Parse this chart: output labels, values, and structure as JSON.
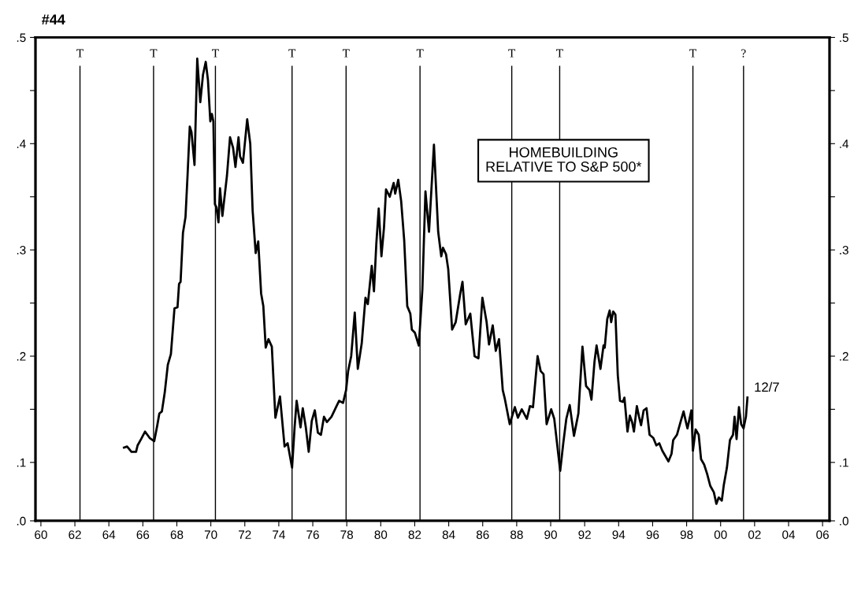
{
  "chart_data": {
    "type": "line",
    "title": "#44",
    "annotations": [
      "HOMEBUILDING\nRELATIVE TO S&P 500*",
      {
        "text": "12/7",
        "x": 2001.58,
        "y": 0.161
      }
    ],
    "xlim": [
      1959.68,
      2006.41
    ],
    "xticks": [
      {
        "value": 1960,
        "label": "60"
      },
      {
        "value": 1962,
        "label": "62"
      },
      {
        "value": 1964,
        "label": "64"
      },
      {
        "value": 1966,
        "label": "66"
      },
      {
        "value": 1968,
        "label": "68"
      },
      {
        "value": 1970,
        "label": "70"
      },
      {
        "value": 1972,
        "label": "72"
      },
      {
        "value": 1974,
        "label": "74"
      },
      {
        "value": 1976,
        "label": "76"
      },
      {
        "value": 1978,
        "label": "78"
      },
      {
        "value": 1980,
        "label": "80"
      },
      {
        "value": 1982,
        "label": "82"
      },
      {
        "value": 1984,
        "label": "84"
      },
      {
        "value": 1986,
        "label": "86"
      },
      {
        "value": 1988,
        "label": "88"
      },
      {
        "value": 1990,
        "label": "90"
      },
      {
        "value": 1992,
        "label": "92"
      },
      {
        "value": 1994,
        "label": "94"
      },
      {
        "value": 1996,
        "label": "96"
      },
      {
        "value": 1998,
        "label": "98"
      },
      {
        "value": 2000,
        "label": "00"
      },
      {
        "value": 2002,
        "label": "02"
      },
      {
        "value": 2004,
        "label": "04"
      },
      {
        "value": 2006,
        "label": "06"
      }
    ],
    "ylim": [
      0.045,
      0.5
    ],
    "yticks": [
      {
        "value": 0.045,
        "label": ".0"
      },
      {
        "value": 0.1,
        "label": ".1"
      },
      {
        "value": 0.15,
        "label": null
      },
      {
        "value": 0.2,
        "label": ".2"
      },
      {
        "value": 0.25,
        "label": null
      },
      {
        "value": 0.3,
        "label": ".3"
      },
      {
        "value": 0.35,
        "label": null
      },
      {
        "value": 0.4,
        "label": ".4"
      },
      {
        "value": 0.45,
        "label": null
      },
      {
        "value": 0.5,
        "label": ".5"
      }
    ],
    "y2lim": [
      0.045,
      0.5
    ],
    "y2ticks": [
      {
        "value": 0.045,
        "label": ".0"
      },
      {
        "value": 0.1,
        "label": ".1"
      },
      {
        "value": 0.15,
        "label": null
      },
      {
        "value": 0.2,
        "label": ".2"
      },
      {
        "value": 0.25,
        "label": null
      },
      {
        "value": 0.3,
        "label": ".3"
      },
      {
        "value": 0.35,
        "label": null
      },
      {
        "value": 0.4,
        "label": ".4"
      },
      {
        "value": 0.45,
        "label": null
      },
      {
        "value": 0.5,
        "label": ".5"
      }
    ],
    "grid": false,
    "legend": false,
    "ref_lines": [
      {
        "axis": "x",
        "value": 1962.3,
        "label": "T"
      },
      {
        "axis": "x",
        "value": 1966.63,
        "label": "T"
      },
      {
        "axis": "x",
        "value": 1970.27,
        "label": "T"
      },
      {
        "axis": "x",
        "value": 1974.78,
        "label": "T"
      },
      {
        "axis": "x",
        "value": 1977.96,
        "label": "T"
      },
      {
        "axis": "x",
        "value": 1982.31,
        "label": "T"
      },
      {
        "axis": "x",
        "value": 1987.71,
        "label": "T"
      },
      {
        "axis": "x",
        "value": 1990.53,
        "label": "T"
      },
      {
        "axis": "x",
        "value": 1998.37,
        "label": "T"
      },
      {
        "axis": "x",
        "value": 2001.35,
        "label": "?"
      }
    ],
    "series": [
      {
        "color": "#000000",
        "x": [
          1964.89,
          1965.07,
          1965.33,
          1965.6,
          1965.69,
          1965.9,
          1966.13,
          1966.4,
          1966.67,
          1966.85,
          1966.97,
          1967.12,
          1967.29,
          1967.47,
          1967.65,
          1967.86,
          1968.04,
          1968.13,
          1968.22,
          1968.36,
          1968.51,
          1968.63,
          1968.76,
          1968.86,
          1969.04,
          1969.2,
          1969.38,
          1969.54,
          1969.7,
          1969.83,
          1969.97,
          1970.06,
          1970.15,
          1970.24,
          1970.33,
          1970.45,
          1970.54,
          1970.68,
          1970.95,
          1971.13,
          1971.31,
          1971.45,
          1971.63,
          1971.72,
          1971.89,
          1972.14,
          1972.32,
          1972.46,
          1972.64,
          1972.79,
          1972.96,
          1973.09,
          1973.23,
          1973.39,
          1973.59,
          1973.8,
          1974.07,
          1974.34,
          1974.52,
          1974.78,
          1974.93,
          1975.05,
          1975.28,
          1975.41,
          1975.59,
          1975.76,
          1975.94,
          1976.12,
          1976.3,
          1976.48,
          1976.66,
          1976.83,
          1977.1,
          1977.37,
          1977.55,
          1977.78,
          1977.96,
          1978.08,
          1978.26,
          1978.47,
          1978.65,
          1978.88,
          1979.1,
          1979.24,
          1979.47,
          1979.6,
          1979.74,
          1979.88,
          1980.04,
          1980.19,
          1980.31,
          1980.53,
          1980.76,
          1980.85,
          1981.03,
          1981.2,
          1981.38,
          1981.56,
          1981.74,
          1981.83,
          1982.01,
          1982.24,
          1982.45,
          1982.63,
          1982.84,
          1983.13,
          1983.38,
          1983.56,
          1983.66,
          1983.84,
          1983.97,
          1984.2,
          1984.41,
          1984.68,
          1984.81,
          1985.0,
          1985.27,
          1985.52,
          1985.75,
          1985.98,
          1986.23,
          1986.37,
          1986.59,
          1986.77,
          1986.96,
          1987.18,
          1987.3,
          1987.59,
          1987.89,
          1988.07,
          1988.3,
          1988.6,
          1988.78,
          1988.96,
          1989.23,
          1989.41,
          1989.58,
          1989.76,
          1990.03,
          1990.21,
          1990.56,
          1990.74,
          1990.92,
          1991.12,
          1991.37,
          1991.63,
          1991.87,
          1992.08,
          1992.29,
          1992.4,
          1992.58,
          1992.7,
          1992.93,
          1993.11,
          1993.18,
          1993.33,
          1993.47,
          1993.56,
          1993.68,
          1993.81,
          1993.95,
          1994.08,
          1994.25,
          1994.34,
          1994.52,
          1994.66,
          1994.79,
          1994.9,
          1995.07,
          1995.2,
          1995.32,
          1995.47,
          1995.64,
          1995.82,
          1996.04,
          1996.22,
          1996.39,
          1996.57,
          1996.93,
          1997.11,
          1997.21,
          1997.43,
          1997.64,
          1997.82,
          1997.96,
          1998.05,
          1998.28,
          1998.37,
          1998.53,
          1998.71,
          1998.85,
          1999.03,
          1999.21,
          1999.39,
          1999.6,
          1999.75,
          1999.89,
          2000.07,
          2000.19,
          2000.37,
          2000.55,
          2000.73,
          2000.82,
          2000.94,
          2001.08,
          2001.21,
          2001.35,
          2001.49,
          2001.58
        ],
        "values": [
          0.114,
          0.115,
          0.11,
          0.11,
          0.116,
          0.122,
          0.129,
          0.123,
          0.12,
          0.135,
          0.146,
          0.148,
          0.166,
          0.192,
          0.202,
          0.245,
          0.246,
          0.268,
          0.27,
          0.316,
          0.331,
          0.37,
          0.416,
          0.411,
          0.38,
          0.48,
          0.439,
          0.465,
          0.477,
          0.46,
          0.421,
          0.428,
          0.421,
          0.343,
          0.34,
          0.326,
          0.358,
          0.332,
          0.37,
          0.406,
          0.396,
          0.378,
          0.406,
          0.388,
          0.382,
          0.423,
          0.4,
          0.337,
          0.297,
          0.308,
          0.259,
          0.247,
          0.208,
          0.216,
          0.209,
          0.142,
          0.162,
          0.115,
          0.118,
          0.095,
          0.133,
          0.158,
          0.133,
          0.151,
          0.133,
          0.11,
          0.139,
          0.149,
          0.128,
          0.126,
          0.143,
          0.138,
          0.143,
          0.152,
          0.158,
          0.156,
          0.168,
          0.186,
          0.2,
          0.241,
          0.188,
          0.212,
          0.255,
          0.249,
          0.285,
          0.261,
          0.306,
          0.339,
          0.294,
          0.321,
          0.357,
          0.35,
          0.363,
          0.353,
          0.366,
          0.346,
          0.309,
          0.247,
          0.24,
          0.225,
          0.222,
          0.21,
          0.263,
          0.355,
          0.317,
          0.399,
          0.317,
          0.294,
          0.302,
          0.296,
          0.282,
          0.225,
          0.232,
          0.259,
          0.27,
          0.23,
          0.24,
          0.2,
          0.198,
          0.255,
          0.232,
          0.211,
          0.229,
          0.205,
          0.216,
          0.168,
          0.16,
          0.136,
          0.152,
          0.142,
          0.15,
          0.141,
          0.153,
          0.152,
          0.2,
          0.186,
          0.183,
          0.136,
          0.15,
          0.141,
          0.092,
          0.118,
          0.141,
          0.154,
          0.125,
          0.146,
          0.209,
          0.172,
          0.168,
          0.159,
          0.195,
          0.21,
          0.188,
          0.21,
          0.208,
          0.235,
          0.243,
          0.232,
          0.242,
          0.239,
          0.182,
          0.158,
          0.157,
          0.161,
          0.129,
          0.144,
          0.138,
          0.129,
          0.153,
          0.143,
          0.135,
          0.149,
          0.151,
          0.126,
          0.123,
          0.116,
          0.118,
          0.111,
          0.101,
          0.108,
          0.121,
          0.126,
          0.138,
          0.148,
          0.138,
          0.132,
          0.149,
          0.111,
          0.131,
          0.126,
          0.103,
          0.098,
          0.089,
          0.078,
          0.072,
          0.061,
          0.067,
          0.064,
          0.079,
          0.095,
          0.121,
          0.126,
          0.143,
          0.122,
          0.152,
          0.136,
          0.132,
          0.143,
          0.161
        ]
      }
    ]
  }
}
